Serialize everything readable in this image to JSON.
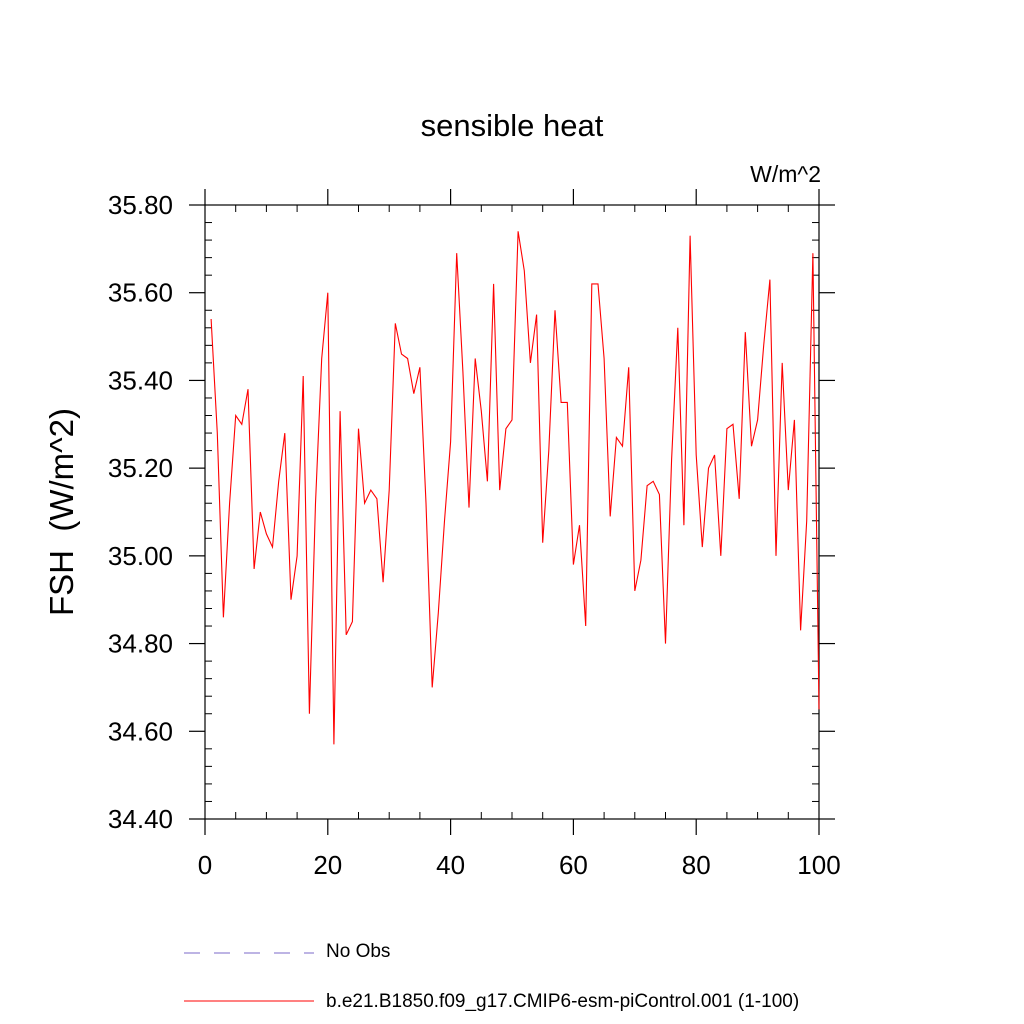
{
  "title": "sensible heat",
  "units_label": "W/m^2",
  "ylabel": "FSH  (W/m^2)",
  "legend": [
    {
      "label": "No Obs",
      "color": "#7b68c8",
      "style": "dashed"
    },
    {
      "label": "b.e21.B1850.f09_g17.CMIP6-esm-piControl.001 (1-100)",
      "color": "#ff0000",
      "style": "solid"
    }
  ],
  "chart_data": {
    "type": "line",
    "title": "sensible heat",
    "ylabel": "FSH  (W/m^2)",
    "xlabel": "",
    "xlim": [
      0,
      100
    ],
    "ylim": [
      34.4,
      35.8
    ],
    "xticks": [
      0,
      20,
      40,
      60,
      80,
      100
    ],
    "xtick_labels": [
      "0",
      "20",
      "40",
      "60",
      "80",
      "100"
    ],
    "yticks": [
      34.4,
      34.6,
      34.8,
      35.0,
      35.2,
      35.4,
      35.6,
      35.8
    ],
    "ytick_labels": [
      "34.40",
      "34.60",
      "34.80",
      "35.00",
      "35.20",
      "35.40",
      "35.60",
      "35.80"
    ],
    "grid": false,
    "legend_position": "bottom",
    "series": [
      {
        "name": "b.e21.B1850.f09_g17.CMIP6-esm-piControl.001 (1-100)",
        "color": "#ff0000",
        "x": [
          1,
          2,
          3,
          4,
          5,
          6,
          7,
          8,
          9,
          10,
          11,
          12,
          13,
          14,
          15,
          16,
          17,
          18,
          19,
          20,
          21,
          22,
          23,
          24,
          25,
          26,
          27,
          28,
          29,
          30,
          31,
          32,
          33,
          34,
          35,
          36,
          37,
          38,
          39,
          40,
          41,
          42,
          43,
          44,
          45,
          46,
          47,
          48,
          49,
          50,
          51,
          52,
          53,
          54,
          55,
          56,
          57,
          58,
          59,
          60,
          61,
          62,
          63,
          64,
          65,
          66,
          67,
          68,
          69,
          70,
          71,
          72,
          73,
          74,
          75,
          76,
          77,
          78,
          79,
          80,
          81,
          82,
          83,
          84,
          85,
          86,
          87,
          88,
          89,
          90,
          91,
          92,
          93,
          94,
          95,
          96,
          97,
          98,
          99,
          100
        ],
        "y": [
          35.54,
          35.28,
          34.86,
          35.12,
          35.32,
          35.3,
          35.38,
          34.97,
          35.1,
          35.05,
          35.02,
          35.17,
          35.28,
          34.9,
          35.0,
          35.41,
          34.64,
          35.12,
          35.45,
          35.6,
          34.57,
          35.33,
          34.82,
          34.85,
          35.29,
          35.12,
          35.15,
          35.13,
          34.94,
          35.15,
          35.53,
          35.46,
          35.45,
          35.37,
          35.43,
          35.12,
          34.7,
          34.87,
          35.08,
          35.26,
          35.69,
          35.42,
          35.11,
          35.45,
          35.33,
          35.17,
          35.62,
          35.15,
          35.29,
          35.31,
          35.74,
          35.65,
          35.44,
          35.55,
          35.03,
          35.24,
          35.56,
          35.35,
          35.35,
          34.98,
          35.07,
          34.84,
          35.62,
          35.62,
          35.45,
          35.09,
          35.27,
          35.25,
          35.43,
          34.92,
          34.99,
          35.16,
          35.17,
          35.14,
          34.8,
          35.22,
          35.52,
          35.07,
          35.73,
          35.23,
          35.02,
          35.2,
          35.23,
          35.0,
          35.29,
          35.3,
          35.13,
          35.51,
          35.25,
          35.31,
          35.48,
          35.63,
          35.0,
          35.44,
          35.15,
          35.31,
          34.83,
          35.08,
          35.69,
          34.65
        ]
      }
    ]
  }
}
